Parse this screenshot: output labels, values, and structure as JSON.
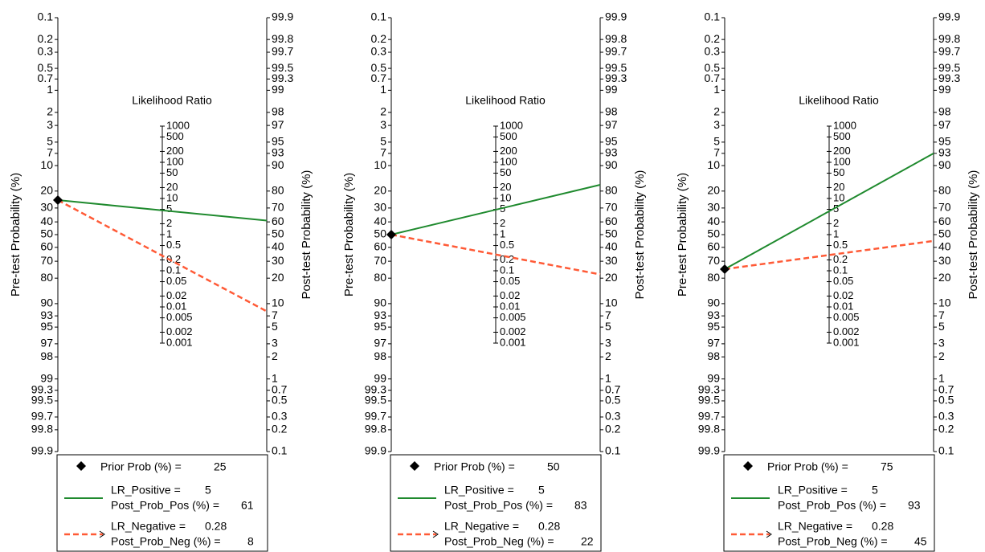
{
  "shared": {
    "pre_label": "Pre-test Probability (%)",
    "post_label": "Post-test Probability (%)",
    "lr_label": "Likelihood Ratio",
    "prob_ticks": [
      0.1,
      0.2,
      0.3,
      0.5,
      0.7,
      1,
      2,
      3,
      5,
      7,
      10,
      20,
      30,
      40,
      50,
      60,
      70,
      80,
      90,
      93,
      95,
      97,
      98,
      99,
      99.3,
      99.5,
      99.7,
      99.8,
      99.9
    ],
    "lr_ticks": [
      1000,
      500,
      200,
      100,
      50,
      20,
      10,
      5,
      2,
      1,
      0.5,
      0.2,
      0.1,
      0.05,
      0.02,
      0.01,
      0.005,
      0.002,
      0.001
    ],
    "colors": {
      "positive": "#1f8a2e",
      "negative": "#ff5a36",
      "prior": "#000000"
    }
  },
  "legend_labels": {
    "prior": "Prior Prob (%) =",
    "lr_pos": "LR_Positive =",
    "post_pos": "Post_Prob_Pos (%) =",
    "lr_neg": "LR_Negative =",
    "post_neg": "Post_Prob_Neg (%) ="
  },
  "chart_data": [
    {
      "type": "nomogram",
      "prior_prob": 25,
      "lr_positive": 5,
      "post_prob_pos": 61,
      "lr_negative": 0.28,
      "post_prob_neg": 8
    },
    {
      "type": "nomogram",
      "prior_prob": 50,
      "lr_positive": 5,
      "post_prob_pos": 83,
      "lr_negative": 0.28,
      "post_prob_neg": 22
    },
    {
      "type": "nomogram",
      "prior_prob": 75,
      "lr_positive": 5,
      "post_prob_pos": 93,
      "lr_negative": 0.28,
      "post_prob_neg": 45
    }
  ]
}
